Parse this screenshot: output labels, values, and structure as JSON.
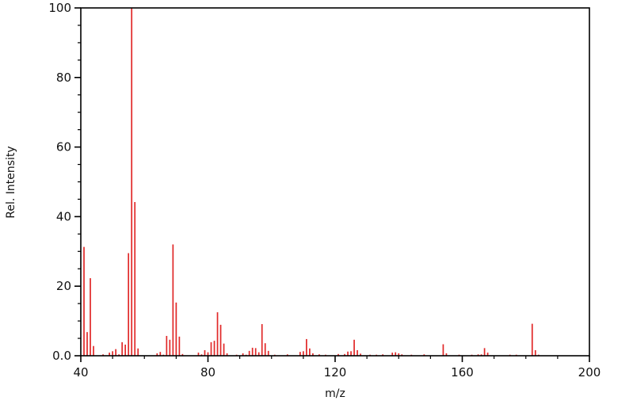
{
  "figure": {
    "xlabel": "m/z",
    "ylabel": "Rel. Intensity"
  },
  "chart_data": {
    "type": "bar",
    "subtype": "mass-spectrum-sticks",
    "title": "",
    "xlabel": "m/z",
    "ylabel": "Rel. Intensity",
    "xlim": [
      40,
      200
    ],
    "ylim": [
      0,
      100
    ],
    "x_major_ticks": [
      40,
      80,
      120,
      160,
      200
    ],
    "x_major_tick_labels": [
      "40",
      "80",
      "120",
      "160",
      "200"
    ],
    "x_minor_tick_step": 10,
    "y_major_ticks": [
      0,
      20,
      40,
      60,
      80,
      100
    ],
    "y_major_tick_labels": [
      "0.0",
      "20",
      "40",
      "60",
      "80",
      "100"
    ],
    "y_minor_tick_step": 5,
    "grid": false,
    "legend": null,
    "peak_color": "#e12828",
    "axis_color": "#000000",
    "background": "#ffffff",
    "base_peak_mz": 56,
    "peaks": [
      {
        "mz": 41,
        "intensity": 31.3
      },
      {
        "mz": 42,
        "intensity": 6.8
      },
      {
        "mz": 43,
        "intensity": 22.3
      },
      {
        "mz": 44,
        "intensity": 2.8
      },
      {
        "mz": 47,
        "intensity": 0.4
      },
      {
        "mz": 49,
        "intensity": 0.9
      },
      {
        "mz": 50,
        "intensity": 1.3
      },
      {
        "mz": 51,
        "intensity": 1.9
      },
      {
        "mz": 52,
        "intensity": 0.4
      },
      {
        "mz": 53,
        "intensity": 3.9
      },
      {
        "mz": 54,
        "intensity": 3.2
      },
      {
        "mz": 55,
        "intensity": 29.5
      },
      {
        "mz": 56,
        "intensity": 100.0
      },
      {
        "mz": 57,
        "intensity": 44.2
      },
      {
        "mz": 58,
        "intensity": 2.1
      },
      {
        "mz": 64,
        "intensity": 0.7
      },
      {
        "mz": 65,
        "intensity": 1.1
      },
      {
        "mz": 66,
        "intensity": 0.3
      },
      {
        "mz": 67,
        "intensity": 5.7
      },
      {
        "mz": 68,
        "intensity": 4.6
      },
      {
        "mz": 69,
        "intensity": 32.0
      },
      {
        "mz": 70,
        "intensity": 15.3
      },
      {
        "mz": 71,
        "intensity": 5.5
      },
      {
        "mz": 72,
        "intensity": 0.5
      },
      {
        "mz": 77,
        "intensity": 0.9
      },
      {
        "mz": 78,
        "intensity": 0.4
      },
      {
        "mz": 79,
        "intensity": 1.6
      },
      {
        "mz": 80,
        "intensity": 1.0
      },
      {
        "mz": 81,
        "intensity": 3.9
      },
      {
        "mz": 82,
        "intensity": 4.3
      },
      {
        "mz": 83,
        "intensity": 12.5
      },
      {
        "mz": 84,
        "intensity": 8.9
      },
      {
        "mz": 85,
        "intensity": 3.5
      },
      {
        "mz": 86,
        "intensity": 0.7
      },
      {
        "mz": 89,
        "intensity": 0.3
      },
      {
        "mz": 91,
        "intensity": 0.7
      },
      {
        "mz": 92,
        "intensity": 0.3
      },
      {
        "mz": 93,
        "intensity": 1.4
      },
      {
        "mz": 94,
        "intensity": 2.3
      },
      {
        "mz": 95,
        "intensity": 2.2
      },
      {
        "mz": 96,
        "intensity": 1.0
      },
      {
        "mz": 97,
        "intensity": 9.1
      },
      {
        "mz": 98,
        "intensity": 3.6
      },
      {
        "mz": 99,
        "intensity": 1.4
      },
      {
        "mz": 101,
        "intensity": 0.3
      },
      {
        "mz": 105,
        "intensity": 0.4
      },
      {
        "mz": 109,
        "intensity": 1.1
      },
      {
        "mz": 110,
        "intensity": 1.3
      },
      {
        "mz": 111,
        "intensity": 4.8
      },
      {
        "mz": 112,
        "intensity": 2.1
      },
      {
        "mz": 113,
        "intensity": 0.7
      },
      {
        "mz": 115,
        "intensity": 0.4
      },
      {
        "mz": 117,
        "intensity": 0.3
      },
      {
        "mz": 121,
        "intensity": 0.5
      },
      {
        "mz": 123,
        "intensity": 0.5
      },
      {
        "mz": 124,
        "intensity": 1.2
      },
      {
        "mz": 125,
        "intensity": 1.3
      },
      {
        "mz": 126,
        "intensity": 4.6
      },
      {
        "mz": 127,
        "intensity": 1.6
      },
      {
        "mz": 128,
        "intensity": 0.6
      },
      {
        "mz": 131,
        "intensity": 0.3
      },
      {
        "mz": 133,
        "intensity": 0.3
      },
      {
        "mz": 135,
        "intensity": 0.4
      },
      {
        "mz": 138,
        "intensity": 0.9
      },
      {
        "mz": 139,
        "intensity": 1.0
      },
      {
        "mz": 140,
        "intensity": 0.7
      },
      {
        "mz": 141,
        "intensity": 0.4
      },
      {
        "mz": 144,
        "intensity": 0.3
      },
      {
        "mz": 148,
        "intensity": 0.4
      },
      {
        "mz": 154,
        "intensity": 3.3
      },
      {
        "mz": 155,
        "intensity": 0.7
      },
      {
        "mz": 159,
        "intensity": 0.3
      },
      {
        "mz": 163,
        "intensity": 0.3
      },
      {
        "mz": 165,
        "intensity": 0.4
      },
      {
        "mz": 166,
        "intensity": 0.4
      },
      {
        "mz": 167,
        "intensity": 2.2
      },
      {
        "mz": 168,
        "intensity": 0.9
      },
      {
        "mz": 175,
        "intensity": 0.3
      },
      {
        "mz": 177,
        "intensity": 0.3
      },
      {
        "mz": 182,
        "intensity": 9.2
      },
      {
        "mz": 183,
        "intensity": 1.6
      },
      {
        "mz": 184,
        "intensity": 0.3
      }
    ]
  }
}
